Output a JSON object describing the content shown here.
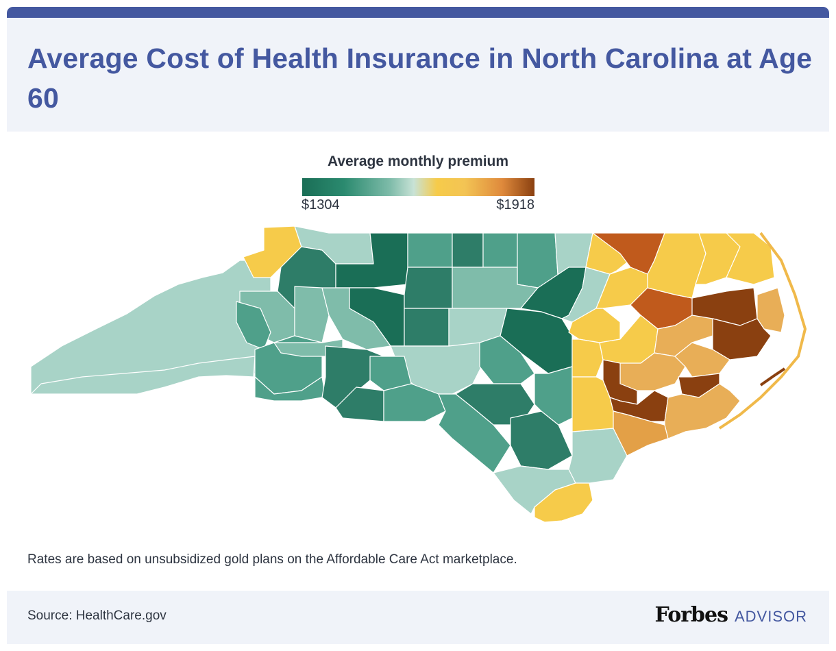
{
  "header": {
    "title": "Average Cost of Health Insurance in North Carolina at Age 60"
  },
  "legend": {
    "title": "Average monthly premium",
    "min_label": "$1304",
    "max_label": "$1918",
    "min_value": 1304,
    "max_value": 1918,
    "colors": [
      "#1a6e56",
      "#2b8a6f",
      "#7fbcaa",
      "#c8e2d6",
      "#f6cb4a",
      "#df8a3c",
      "#8a4010"
    ]
  },
  "map": {
    "region": "North Carolina",
    "granularity": "county",
    "west_region_color": "#a8d3c7",
    "piedmont_colors": [
      "#2e7d68",
      "#1a6e56",
      "#4fa08a",
      "#7fbcaa"
    ],
    "east_colors": [
      "#f6cb4a",
      "#e8ae57",
      "#e3a047",
      "#c05a1c",
      "#8a4010"
    ]
  },
  "note": "Rates are based on unsubsidized gold plans on the Affordable Care Act marketplace.",
  "footer": {
    "source": "Source: HealthCare.gov",
    "brand_name": "Forbes",
    "brand_suffix": "ADVISOR"
  }
}
